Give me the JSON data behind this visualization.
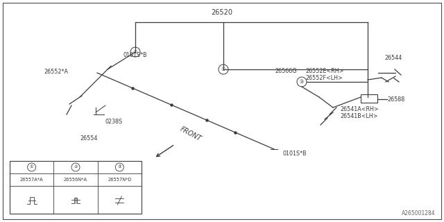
{
  "bg_color": "#ffffff",
  "border_color": "#4a4a4a",
  "line_color": "#3a3a3a",
  "title_part": "26520",
  "lbl_0101SB_1": "0101S*B",
  "lbl_0101SB_2": "0101S*B",
  "lbl_0238S": "0238S",
  "lbl_26552A": "26552*A",
  "lbl_26554": "26554",
  "lbl_26544": "26544",
  "lbl_26588": "26588",
  "lbl_26566G": "26566G",
  "lbl_26552E": "26552E<RH>",
  "lbl_26552F": "26552F<LH>",
  "lbl_26541A": "26541A<RH>",
  "lbl_26541B": "26541B<LH>",
  "lbl_front": "FRONT",
  "table_circles": [
    "①",
    "②",
    "③"
  ],
  "table_parts": [
    "26557A*A",
    "26556N*A",
    "26557N*D"
  ],
  "watermark": "A265001284",
  "c1_label": "①",
  "c2_label": "②",
  "c3_label": "③"
}
